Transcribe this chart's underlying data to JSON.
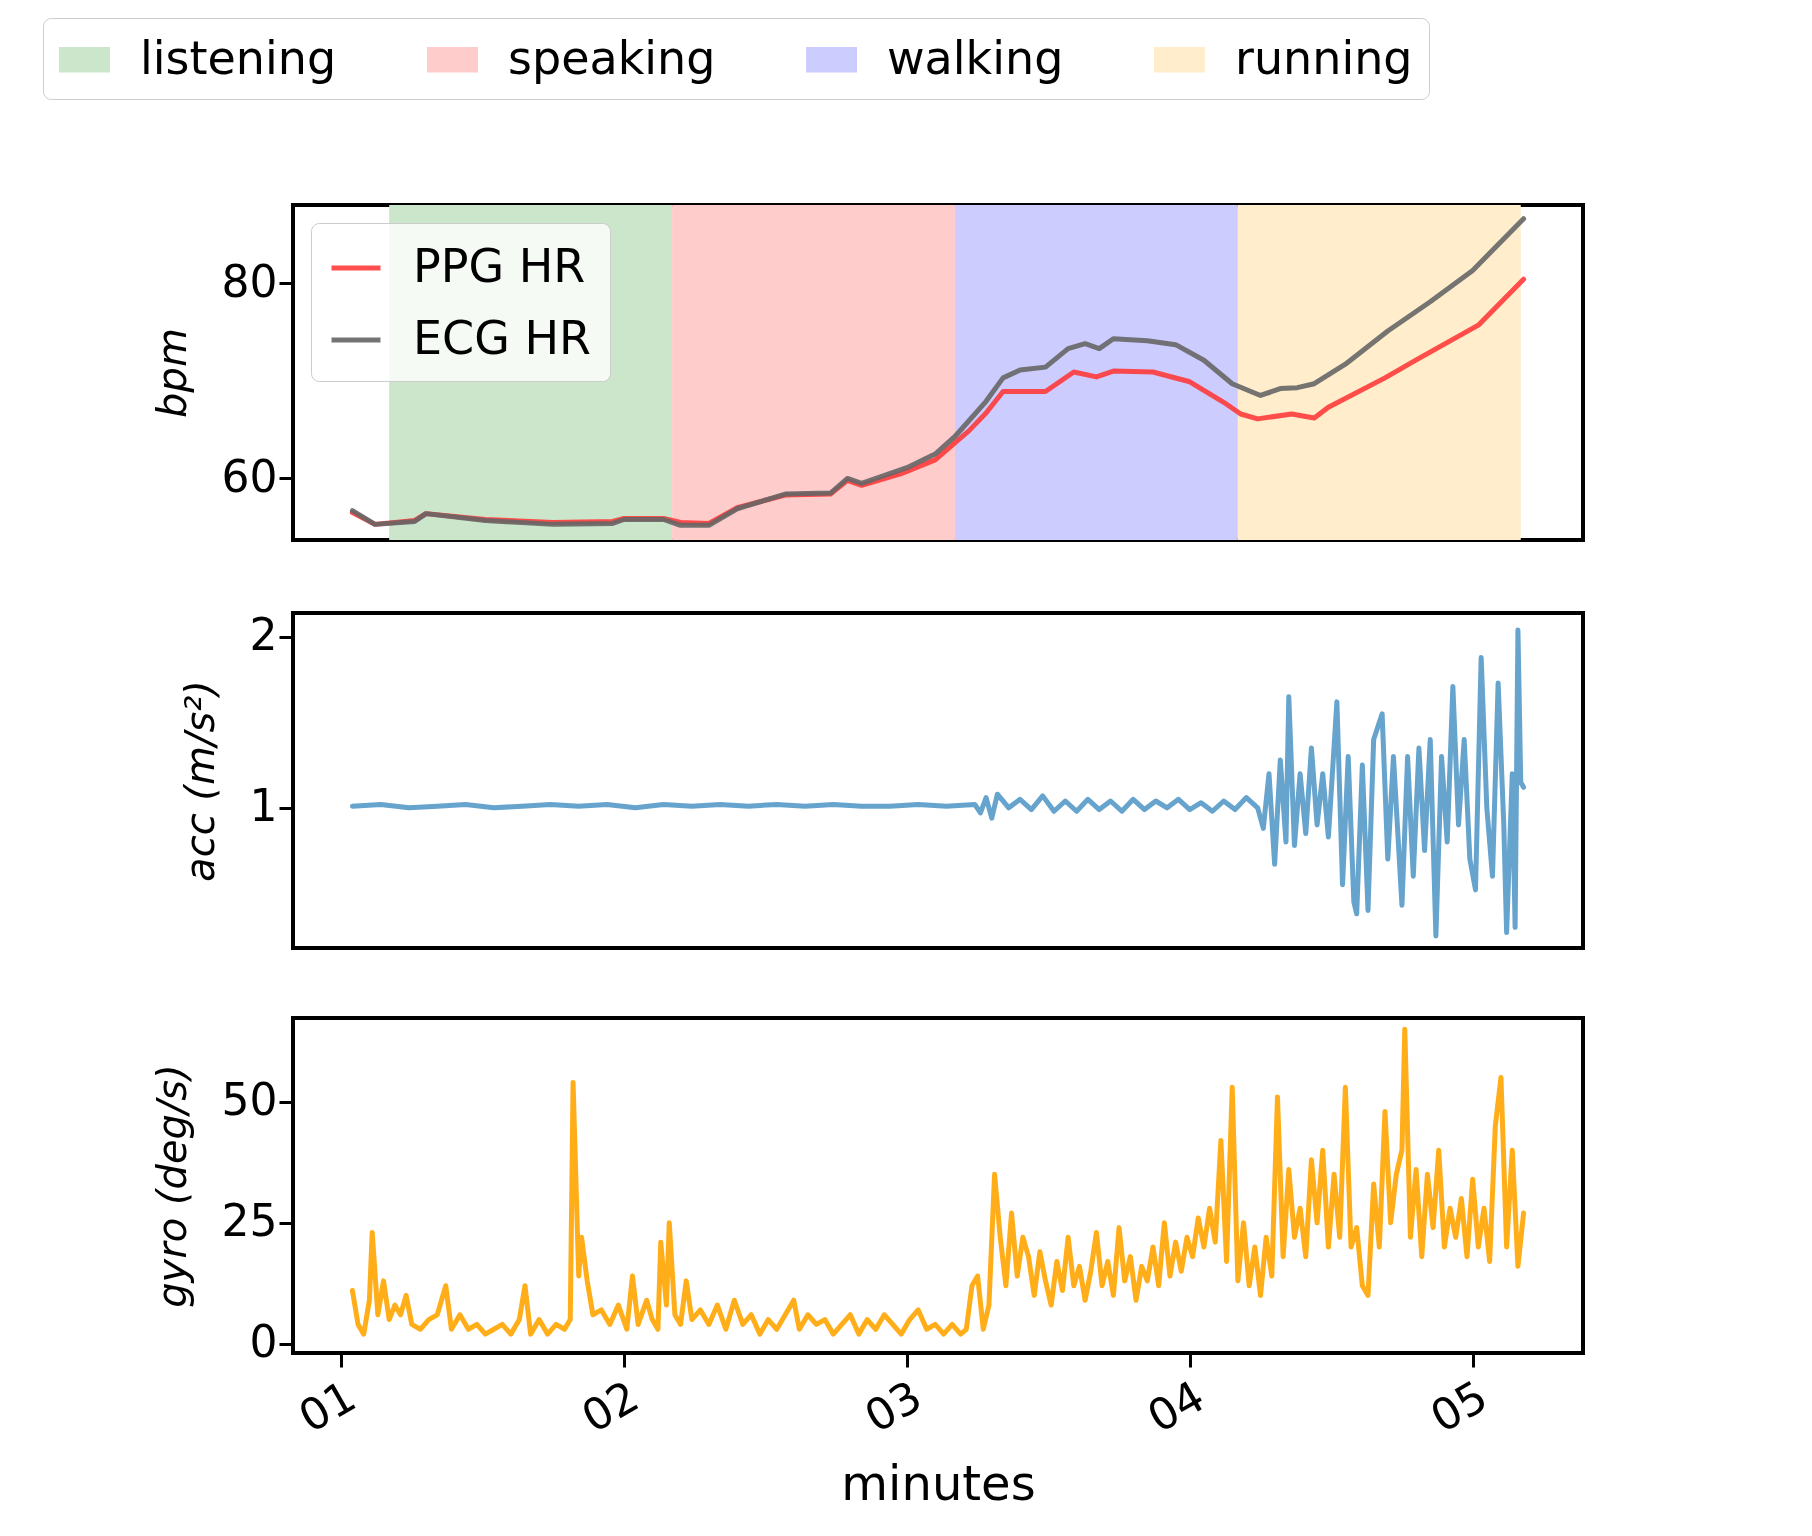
{
  "chart_data": [
    {
      "type": "line",
      "ylabel": "bpm",
      "xlim": [
        0.83,
        5.39
      ],
      "ylim": [
        53.7,
        88
      ],
      "yticks": [
        60,
        80
      ],
      "grid": false,
      "legend": "top left",
      "tick_labels": "y",
      "bands": [
        {
          "axis": "x",
          "from": 1.17,
          "to": 2.17,
          "label": "listening",
          "color": "#cce6cc"
        },
        {
          "axis": "x",
          "from": 2.17,
          "to": 3.17,
          "label": "speaking",
          "color": "#ffcccc"
        },
        {
          "axis": "x",
          "from": 3.17,
          "to": 4.17,
          "label": "walking",
          "color": "#ccccff"
        },
        {
          "axis": "x",
          "from": 4.17,
          "to": 5.17,
          "label": "running",
          "color": "#ffedcc"
        }
      ],
      "series": [
        {
          "name": "PPG HR",
          "color": "#ff3b3b",
          "x": [
            1.04,
            1.12,
            1.26,
            1.3,
            1.51,
            1.75,
            1.96,
            2.0,
            2.14,
            2.2,
            2.3,
            2.4,
            2.57,
            2.73,
            2.79,
            2.84,
            2.98,
            3.1,
            3.22,
            3.28,
            3.34,
            3.49,
            3.59,
            3.67,
            3.73,
            3.87,
            4.0,
            4.12,
            4.18,
            4.24,
            4.36,
            4.44,
            4.49,
            4.69,
            4.81,
            5.02,
            5.18
          ],
          "values": [
            56.5,
            55.3,
            55.7,
            56.4,
            55.8,
            55.5,
            55.6,
            55.9,
            55.9,
            55.5,
            55.4,
            57.0,
            58.3,
            58.4,
            59.8,
            59.3,
            60.5,
            61.9,
            64.9,
            66.7,
            68.9,
            68.9,
            70.9,
            70.4,
            71.0,
            70.9,
            69.9,
            67.8,
            66.6,
            66.1,
            66.6,
            66.2,
            67.3,
            70.3,
            72.3,
            75.7,
            80.4
          ]
        },
        {
          "name": "ECG HR",
          "color": "#666666",
          "x": [
            1.04,
            1.12,
            1.26,
            1.3,
            1.51,
            1.75,
            1.96,
            2.0,
            2.14,
            2.2,
            2.3,
            2.4,
            2.57,
            2.73,
            2.79,
            2.84,
            3.0,
            3.1,
            3.17,
            3.28,
            3.34,
            3.4,
            3.49,
            3.57,
            3.63,
            3.68,
            3.73,
            3.85,
            3.95,
            4.05,
            4.15,
            4.25,
            4.32,
            4.38,
            4.44,
            4.55,
            4.7,
            4.85,
            5.0,
            5.18
          ],
          "values": [
            56.7,
            55.3,
            55.6,
            56.4,
            55.7,
            55.3,
            55.4,
            55.8,
            55.8,
            55.2,
            55.2,
            56.9,
            58.4,
            58.5,
            60.0,
            59.5,
            61.1,
            62.5,
            64.3,
            67.9,
            70.3,
            71.1,
            71.4,
            73.3,
            73.8,
            73.3,
            74.3,
            74.1,
            73.7,
            72.1,
            69.7,
            68.5,
            69.2,
            69.3,
            69.7,
            71.7,
            75.1,
            78.1,
            81.3,
            86.6
          ]
        }
      ]
    },
    {
      "type": "line",
      "ylabel": "acc (m/s²)",
      "xlim": [
        0.83,
        5.39
      ],
      "ylim": [
        0.18,
        2.14
      ],
      "yticks": [
        1,
        2
      ],
      "grid": false,
      "tick_labels": "y",
      "series": [
        {
          "color": "#5599c8",
          "x": [
            1.04,
            1.14,
            1.24,
            1.34,
            1.44,
            1.54,
            1.64,
            1.74,
            1.84,
            1.94,
            2.04,
            2.14,
            2.24,
            2.34,
            2.44,
            2.54,
            2.64,
            2.74,
            2.84,
            2.94,
            3.04,
            3.14,
            3.24,
            3.26,
            3.28,
            3.3,
            3.32,
            3.36,
            3.4,
            3.44,
            3.48,
            3.52,
            3.56,
            3.6,
            3.64,
            3.68,
            3.72,
            3.76,
            3.8,
            3.84,
            3.88,
            3.92,
            3.96,
            4.0,
            4.04,
            4.08,
            4.12,
            4.16,
            4.2,
            4.24,
            4.26,
            4.28,
            4.3,
            4.32,
            4.34,
            4.35,
            4.37,
            4.39,
            4.41,
            4.43,
            4.45,
            4.47,
            4.49,
            4.52,
            4.54,
            4.56,
            4.58,
            4.59,
            4.61,
            4.63,
            4.65,
            4.68,
            4.7,
            4.72,
            4.75,
            4.77,
            4.79,
            4.81,
            4.83,
            4.85,
            4.87,
            4.89,
            4.91,
            4.93,
            4.95,
            4.97,
            4.99,
            5.01,
            5.03,
            5.05,
            5.07,
            5.09,
            5.11,
            5.12,
            5.14,
            5.15,
            5.16,
            5.17,
            5.18
          ],
          "values": [
            1.01,
            1.02,
            1.0,
            1.01,
            1.02,
            1.0,
            1.01,
            1.02,
            1.01,
            1.02,
            1.0,
            1.02,
            1.01,
            1.02,
            1.01,
            1.02,
            1.01,
            1.02,
            1.01,
            1.01,
            1.02,
            1.01,
            1.02,
            0.97,
            1.06,
            0.94,
            1.08,
            1.0,
            1.05,
            0.99,
            1.07,
            0.98,
            1.04,
            0.98,
            1.05,
            0.99,
            1.04,
            0.98,
            1.05,
            0.99,
            1.04,
            1.0,
            1.05,
            0.99,
            1.03,
            0.98,
            1.04,
            0.99,
            1.06,
            1.0,
            0.88,
            1.2,
            0.67,
            1.28,
            0.8,
            1.65,
            0.78,
            1.2,
            0.85,
            1.35,
            0.9,
            1.2,
            0.83,
            1.62,
            0.55,
            1.3,
            0.45,
            0.38,
            1.25,
            0.4,
            1.4,
            1.55,
            0.7,
            1.3,
            0.43,
            1.3,
            0.6,
            1.35,
            0.75,
            1.4,
            0.25,
            1.3,
            0.8,
            1.71,
            0.9,
            1.4,
            0.7,
            0.52,
            1.88,
            1.0,
            0.6,
            1.73,
            0.9,
            0.27,
            1.2,
            0.3,
            2.04,
            1.15,
            1.12
          ]
        }
      ]
    },
    {
      "type": "line",
      "ylabel": "gyro (deg/s)",
      "xlabel": "minutes",
      "xlim": [
        0.83,
        5.39
      ],
      "ylim": [
        -1.9,
        67.3
      ],
      "yticks": [
        0,
        25,
        50
      ],
      "grid": false,
      "xticks": [
        {
          "value": 1,
          "label": "01"
        },
        {
          "value": 2,
          "label": "02"
        },
        {
          "value": 3,
          "label": "03"
        },
        {
          "value": 4,
          "label": "04"
        },
        {
          "value": 5,
          "label": "05"
        }
      ],
      "series": [
        {
          "color": "#ffa500",
          "x": [
            1.04,
            1.06,
            1.08,
            1.1,
            1.11,
            1.13,
            1.15,
            1.17,
            1.19,
            1.21,
            1.23,
            1.25,
            1.28,
            1.31,
            1.34,
            1.37,
            1.39,
            1.42,
            1.45,
            1.48,
            1.51,
            1.54,
            1.57,
            1.6,
            1.63,
            1.65,
            1.67,
            1.7,
            1.73,
            1.76,
            1.79,
            1.81,
            1.82,
            1.84,
            1.85,
            1.87,
            1.89,
            1.92,
            1.95,
            1.98,
            2.01,
            2.03,
            2.05,
            2.08,
            2.1,
            2.12,
            2.13,
            2.15,
            2.16,
            2.18,
            2.2,
            2.22,
            2.24,
            2.27,
            2.3,
            2.33,
            2.36,
            2.39,
            2.42,
            2.45,
            2.48,
            2.51,
            2.54,
            2.57,
            2.6,
            2.62,
            2.65,
            2.68,
            2.71,
            2.74,
            2.77,
            2.8,
            2.83,
            2.86,
            2.89,
            2.92,
            2.95,
            2.98,
            3.01,
            3.04,
            3.07,
            3.1,
            3.13,
            3.16,
            3.19,
            3.21,
            3.23,
            3.25,
            3.27,
            3.29,
            3.31,
            3.33,
            3.35,
            3.37,
            3.39,
            3.41,
            3.43,
            3.45,
            3.47,
            3.49,
            3.51,
            3.53,
            3.55,
            3.57,
            3.59,
            3.61,
            3.63,
            3.65,
            3.67,
            3.69,
            3.71,
            3.73,
            3.75,
            3.77,
            3.79,
            3.81,
            3.83,
            3.85,
            3.87,
            3.89,
            3.91,
            3.93,
            3.95,
            3.97,
            3.99,
            4.01,
            4.03,
            4.05,
            4.07,
            4.09,
            4.11,
            4.13,
            4.15,
            4.17,
            4.19,
            4.21,
            4.23,
            4.25,
            4.27,
            4.29,
            4.31,
            4.33,
            4.35,
            4.37,
            4.39,
            4.41,
            4.43,
            4.45,
            4.47,
            4.49,
            4.51,
            4.53,
            4.55,
            4.57,
            4.59,
            4.61,
            4.63,
            4.65,
            4.67,
            4.69,
            4.71,
            4.73,
            4.75,
            4.76,
            4.78,
            4.8,
            4.82,
            4.84,
            4.86,
            4.88,
            4.9,
            4.92,
            4.94,
            4.96,
            4.98,
            5.0,
            5.02,
            5.04,
            5.06,
            5.08,
            5.1,
            5.12,
            5.14,
            5.16,
            5.18
          ],
          "values": [
            11,
            4,
            2,
            9,
            23,
            6,
            13,
            5,
            8,
            6,
            10,
            4,
            3,
            5,
            6,
            12,
            3,
            6,
            3,
            4,
            2,
            3,
            4,
            2,
            5,
            12,
            2,
            5,
            2,
            4,
            3,
            5,
            54,
            14,
            22,
            13,
            6,
            7,
            4,
            8,
            3,
            14,
            4,
            9,
            5,
            3,
            21,
            8,
            25,
            6,
            4,
            13,
            5,
            7,
            4,
            8,
            3,
            9,
            4,
            6,
            2,
            5,
            3,
            6,
            9,
            3,
            6,
            4,
            5,
            2,
            4,
            6,
            2,
            5,
            3,
            6,
            4,
            2,
            5,
            7,
            3,
            4,
            2,
            4,
            2,
            3,
            12,
            14,
            3,
            8,
            35,
            22,
            12,
            27,
            14,
            22,
            18,
            10,
            19,
            13,
            8,
            17,
            11,
            22,
            12,
            16,
            9,
            15,
            23,
            12,
            17,
            10,
            24,
            13,
            18,
            9,
            16,
            13,
            20,
            12,
            25,
            14,
            21,
            15,
            22,
            18,
            26,
            20,
            28,
            21,
            42,
            17,
            53,
            13,
            25,
            12,
            20,
            10,
            22,
            14,
            51,
            18,
            36,
            22,
            28,
            18,
            38,
            25,
            40,
            20,
            35,
            22,
            53,
            20,
            24,
            12,
            10,
            33,
            20,
            48,
            25,
            35,
            40,
            65,
            22,
            36,
            18,
            35,
            24,
            40,
            20,
            28,
            22,
            30,
            18,
            34,
            20,
            28,
            17,
            45,
            55,
            20,
            40,
            16,
            27
          ]
        }
      ]
    }
  ]
}
